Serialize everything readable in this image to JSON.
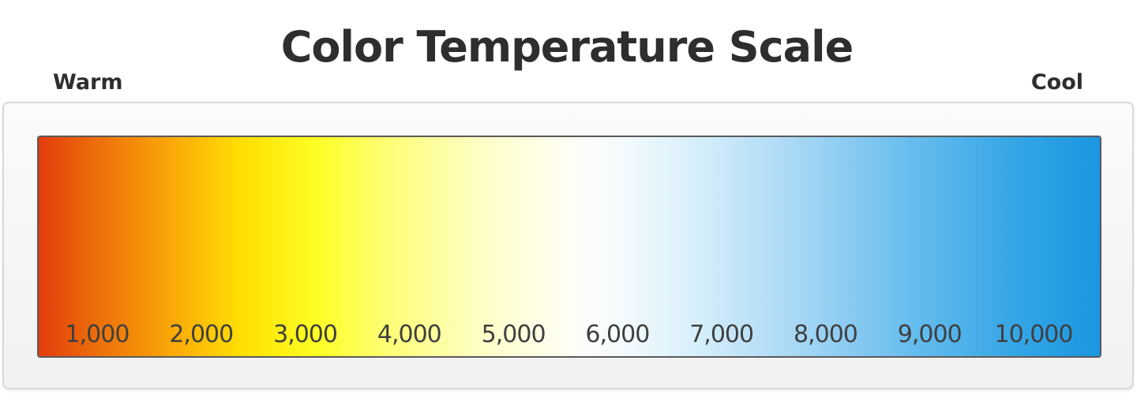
{
  "title": "Color Temperature Scale",
  "labels": {
    "warm": "Warm",
    "cool": "Cool"
  },
  "scale": {
    "gradient_stops": [
      {
        "pos": 0.0,
        "color": "#e33d0c"
      },
      {
        "pos": 0.05,
        "color": "#ec6a0a"
      },
      {
        "pos": 0.13,
        "color": "#fcac08"
      },
      {
        "pos": 0.19,
        "color": "#fede03"
      },
      {
        "pos": 0.26,
        "color": "#fefe22"
      },
      {
        "pos": 0.33,
        "color": "#fefe78"
      },
      {
        "pos": 0.42,
        "color": "#fefec8"
      },
      {
        "pos": 0.5,
        "color": "#fefef6"
      },
      {
        "pos": 0.55,
        "color": "#f4fbfe"
      },
      {
        "pos": 0.63,
        "color": "#d2ecfa"
      },
      {
        "pos": 0.72,
        "color": "#a4d6f4"
      },
      {
        "pos": 0.82,
        "color": "#68bdee"
      },
      {
        "pos": 0.92,
        "color": "#35a6e6"
      },
      {
        "pos": 1.0,
        "color": "#1a96e0"
      }
    ],
    "ticks": [
      "1,000",
      "2,000",
      "3,000",
      "4,000",
      "5,000",
      "6,000",
      "7,000",
      "8,000",
      "9,000",
      "10,000"
    ]
  }
}
